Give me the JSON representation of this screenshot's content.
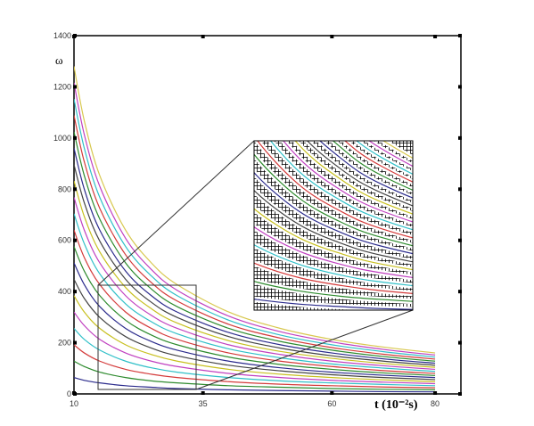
{
  "chart_data": {
    "type": "line",
    "ylabel": "ω",
    "xlabel": "t (10⁻²s)",
    "x": [
      10,
      12,
      15,
      20,
      25,
      30,
      40,
      50,
      60,
      70,
      80
    ],
    "xlim": [
      10,
      85
    ],
    "ylim": [
      0,
      1400
    ],
    "xticks": [
      10,
      35,
      60,
      80
    ],
    "yticks": [
      0,
      200,
      400,
      600,
      800,
      1000,
      1200,
      1400
    ],
    "series": [
      {
        "color": "#2b2b8c",
        "values": [
          64,
          53,
          43,
          32,
          26,
          21,
          16,
          13,
          11,
          9,
          8
        ]
      },
      {
        "color": "#2e8b2e",
        "values": [
          128,
          107,
          85,
          64,
          51,
          43,
          32,
          26,
          21,
          18,
          16
        ]
      },
      {
        "color": "#d43a3a",
        "values": [
          192,
          160,
          128,
          96,
          77,
          64,
          48,
          38,
          32,
          27,
          24
        ]
      },
      {
        "color": "#30c0c8",
        "values": [
          256,
          213,
          171,
          128,
          102,
          85,
          64,
          51,
          43,
          37,
          32
        ]
      },
      {
        "color": "#c040c0",
        "values": [
          320,
          267,
          213,
          160,
          128,
          107,
          80,
          64,
          53,
          46,
          40
        ]
      },
      {
        "color": "#c8c020",
        "values": [
          384,
          320,
          256,
          192,
          154,
          128,
          96,
          77,
          64,
          55,
          48
        ]
      },
      {
        "color": "#444444",
        "values": [
          448,
          373,
          299,
          224,
          179,
          149,
          112,
          90,
          75,
          64,
          56
        ]
      },
      {
        "color": "#2b2b8c",
        "values": [
          512,
          427,
          341,
          256,
          205,
          171,
          128,
          102,
          85,
          73,
          64
        ]
      },
      {
        "color": "#2e8b2e",
        "values": [
          576,
          480,
          384,
          288,
          230,
          192,
          144,
          115,
          96,
          82,
          72
        ]
      },
      {
        "color": "#d43a3a",
        "values": [
          640,
          533,
          427,
          320,
          256,
          213,
          160,
          128,
          107,
          91,
          80
        ]
      },
      {
        "color": "#30c0c8",
        "values": [
          704,
          587,
          469,
          352,
          282,
          235,
          176,
          141,
          117,
          101,
          88
        ]
      },
      {
        "color": "#c040c0",
        "values": [
          768,
          640,
          512,
          384,
          307,
          256,
          192,
          154,
          128,
          110,
          96
        ]
      },
      {
        "color": "#c8c020",
        "values": [
          832,
          693,
          555,
          416,
          333,
          277,
          208,
          166,
          139,
          119,
          104
        ]
      },
      {
        "color": "#444444",
        "values": [
          896,
          747,
          597,
          448,
          358,
          299,
          224,
          179,
          149,
          128,
          112
        ]
      },
      {
        "color": "#2b2b8c",
        "values": [
          960,
          800,
          640,
          480,
          384,
          320,
          240,
          192,
          160,
          137,
          120
        ]
      },
      {
        "color": "#2e8b2e",
        "values": [
          1024,
          853,
          683,
          512,
          410,
          341,
          256,
          205,
          171,
          146,
          128
        ]
      },
      {
        "color": "#d43a3a",
        "values": [
          1088,
          907,
          725,
          544,
          435,
          363,
          272,
          218,
          181,
          155,
          136
        ]
      },
      {
        "color": "#30c0c8",
        "values": [
          1152,
          960,
          768,
          576,
          461,
          384,
          288,
          230,
          192,
          165,
          144
        ]
      },
      {
        "color": "#c040c0",
        "values": [
          1216,
          1013,
          811,
          608,
          486,
          405,
          304,
          243,
          203,
          174,
          152
        ]
      },
      {
        "color": "#d8c850",
        "values": [
          1280,
          1067,
          853,
          640,
          512,
          427,
          320,
          256,
          213,
          183,
          160
        ]
      }
    ]
  }
}
